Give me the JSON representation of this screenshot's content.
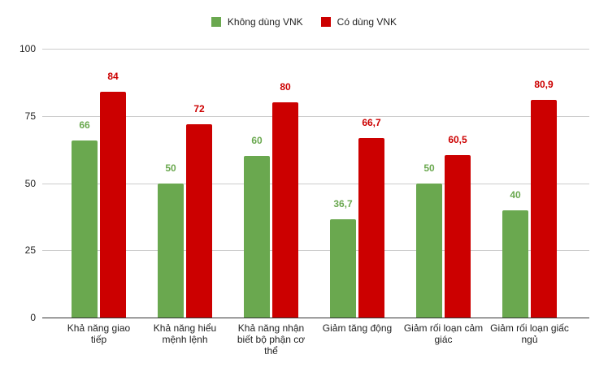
{
  "colors": {
    "series1": "#6aa84f",
    "series2": "#cc0000"
  },
  "legend": [
    {
      "label": "Không dùng VNK",
      "color": "#6aa84f"
    },
    {
      "label": "Có dùng VNK",
      "color": "#cc0000"
    }
  ],
  "y_ticks": [
    "0",
    "25",
    "50",
    "75",
    "100"
  ],
  "chart_data": {
    "type": "bar",
    "title": "",
    "xlabel": "",
    "ylabel": "",
    "ylim": [
      0,
      100
    ],
    "grid": true,
    "legend_position": "top",
    "categories": [
      "Khả năng giao tiếp",
      "Khả năng hiểu mệnh lệnh",
      "Khả năng nhận biết bộ phận cơ thể",
      "Giảm tăng động",
      "Giảm rối loạn cảm giác",
      "Giảm rối loạn giấc ngủ"
    ],
    "series": [
      {
        "name": "Không dùng VNK",
        "values": [
          66,
          50,
          60,
          36.7,
          50,
          40
        ],
        "labels": [
          "66",
          "50",
          "60",
          "36,7",
          "50",
          "40"
        ],
        "color": "#6aa84f"
      },
      {
        "name": "Có dùng VNK",
        "values": [
          84,
          72,
          80,
          66.7,
          60.5,
          80.9
        ],
        "labels": [
          "84",
          "72",
          "80",
          "66,7",
          "60,5",
          "80,9"
        ],
        "color": "#cc0000"
      }
    ]
  }
}
